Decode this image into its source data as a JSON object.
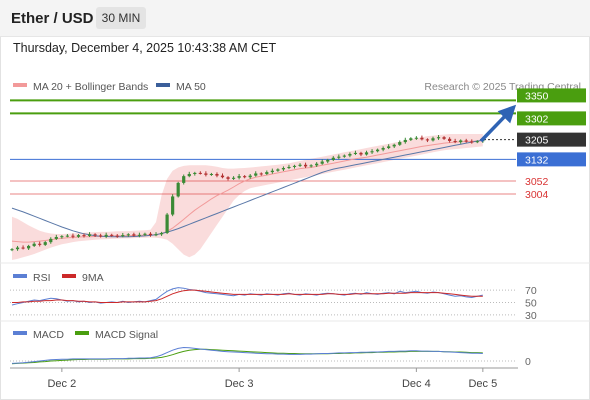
{
  "header": {
    "title": "Ether / USD",
    "interval": "30 MIN",
    "timestamp": "Thursday, December 4, 2025 10:43:38 AM CET"
  },
  "copyright": "Research © 2025 Trading Central",
  "colors": {
    "green": "#4a9e0f",
    "blue": "#3b6fd4",
    "red": "#d93434",
    "current": "#333333",
    "candle_up": "#3a8a35",
    "candle_down": "#b33333",
    "ma20": "#f29a9a",
    "band_fill": "#f9d6d6",
    "ma50": "#5a78a8",
    "rsi": "#5b7fd4",
    "rsi_ma": "#cc2929",
    "macd": "#5b7fd4",
    "macd_signal": "#4a9e0f"
  },
  "chart_data": [
    {
      "type": "candlestick",
      "legend": [
        {
          "name": "MA 20 + Bollinger Bands",
          "color": "#f29a9a"
        },
        {
          "name": "MA 50",
          "color": "#3b5f9a"
        }
      ],
      "levels": [
        {
          "value": 3350,
          "label": "3350",
          "kind": "resistance",
          "color": "#4a9e0f"
        },
        {
          "value": 3302,
          "label": "3302",
          "kind": "resistance",
          "color": "#4a9e0f"
        },
        {
          "value": 3205,
          "label": "3205",
          "kind": "current",
          "color": "#333333"
        },
        {
          "value": 3132,
          "label": "3132",
          "kind": "pivot",
          "color": "#3b6fd4"
        },
        {
          "value": 3052,
          "label": "3052",
          "kind": "support",
          "color": "#d93434"
        },
        {
          "value": 3004,
          "label": "3004",
          "kind": "support",
          "color": "#d93434"
        }
      ],
      "x_ticks": [
        {
          "i": 9,
          "label": "Dec 2"
        },
        {
          "i": 41,
          "label": "Dec 3"
        },
        {
          "i": 73,
          "label": "Dec 4"
        },
        {
          "i": 85,
          "label": "Dec 5"
        }
      ],
      "ylim": [
        2760,
        3370
      ],
      "n_slots": 90,
      "close": [
        2800,
        2806,
        2803,
        2812,
        2820,
        2816,
        2826,
        2838,
        2845,
        2848,
        2850,
        2846,
        2852,
        2849,
        2855,
        2851,
        2847,
        2853,
        2850,
        2848,
        2852,
        2855,
        2850,
        2853,
        2857,
        2852,
        2855,
        2860,
        2928,
        2995,
        3045,
        3070,
        3078,
        3082,
        3080,
        3075,
        3078,
        3072,
        3066,
        3060,
        3064,
        3070,
        3066,
        3072,
        3080,
        3078,
        3085,
        3090,
        3095,
        3100,
        3104,
        3108,
        3112,
        3106,
        3110,
        3116,
        3124,
        3130,
        3138,
        3142,
        3146,
        3152,
        3156,
        3150,
        3158,
        3162,
        3168,
        3174,
        3180,
        3186,
        3196,
        3204,
        3210,
        3212,
        3206,
        3202,
        3210,
        3214,
        3208,
        3200,
        3196,
        3202,
        3198,
        3196,
        3199,
        3205
      ],
      "ma20": [
        2830,
        2828,
        2826,
        2826,
        2828,
        2830,
        2832,
        2835,
        2838,
        2840,
        2842,
        2843,
        2845,
        2846,
        2846,
        2847,
        2848,
        2848,
        2849,
        2849,
        2850,
        2850,
        2851,
        2851,
        2852,
        2852,
        2853,
        2858,
        2866,
        2878,
        2894,
        2910,
        2928,
        2944,
        2958,
        2972,
        2986,
        2998,
        3008,
        3018,
        3030,
        3042,
        3052,
        3060,
        3066,
        3070,
        3074,
        3078,
        3082,
        3086,
        3090,
        3094,
        3098,
        3100,
        3102,
        3106,
        3110,
        3114,
        3118,
        3122,
        3126,
        3130,
        3134,
        3137,
        3140,
        3144,
        3148,
        3152,
        3156,
        3160,
        3164,
        3168,
        3172,
        3176,
        3180,
        3183,
        3186,
        3189,
        3192,
        3194,
        3196,
        3197,
        3198,
        3199,
        3200,
        3201
      ],
      "upper_band": [
        2920,
        2912,
        2900,
        2888,
        2878,
        2868,
        2862,
        2858,
        2856,
        2856,
        2857,
        2858,
        2860,
        2861,
        2862,
        2863,
        2864,
        2864,
        2865,
        2866,
        2866,
        2867,
        2868,
        2869,
        2870,
        2872,
        2900,
        3000,
        3060,
        3090,
        3102,
        3108,
        3110,
        3110,
        3110,
        3110,
        3108,
        3105,
        3100,
        3098,
        3098,
        3099,
        3100,
        3102,
        3104,
        3106,
        3108,
        3110,
        3112,
        3115,
        3118,
        3122,
        3126,
        3130,
        3134,
        3138,
        3142,
        3146,
        3150,
        3154,
        3158,
        3162,
        3166,
        3170,
        3174,
        3178,
        3182,
        3186,
        3190,
        3194,
        3198,
        3202,
        3206,
        3210,
        3214,
        3218,
        3220,
        3222,
        3224,
        3226,
        3226,
        3226,
        3226,
        3226,
        3226,
        3226
      ],
      "lower_band": [
        2760,
        2764,
        2770,
        2776,
        2782,
        2790,
        2798,
        2806,
        2812,
        2818,
        2822,
        2826,
        2829,
        2831,
        2833,
        2835,
        2836,
        2837,
        2838,
        2839,
        2840,
        2840,
        2841,
        2842,
        2842,
        2843,
        2842,
        2840,
        2835,
        2820,
        2800,
        2780,
        2770,
        2780,
        2800,
        2830,
        2860,
        2890,
        2920,
        2950,
        2980,
        3000,
        3015,
        3025,
        3030,
        3034,
        3038,
        3042,
        3046,
        3050,
        3054,
        3058,
        3062,
        3066,
        3070,
        3074,
        3078,
        3082,
        3086,
        3090,
        3094,
        3098,
        3102,
        3106,
        3110,
        3114,
        3118,
        3122,
        3126,
        3130,
        3134,
        3138,
        3142,
        3146,
        3150,
        3154,
        3158,
        3162,
        3166,
        3168,
        3170,
        3172,
        3174,
        3176,
        3178,
        3180
      ],
      "ma50": [
        2952,
        2945,
        2938,
        2930,
        2922,
        2914,
        2906,
        2898,
        2890,
        2882,
        2875,
        2868,
        2862,
        2857,
        2853,
        2850,
        2848,
        2847,
        2846,
        2846,
        2846,
        2846,
        2847,
        2848,
        2849,
        2851,
        2854,
        2858,
        2863,
        2869,
        2876,
        2884,
        2892,
        2900,
        2908,
        2916,
        2924,
        2932,
        2940,
        2948,
        2956,
        2964,
        2972,
        2980,
        2988,
        2996,
        3004,
        3012,
        3020,
        3028,
        3036,
        3044,
        3052,
        3060,
        3068,
        3076,
        3084,
        3090,
        3096,
        3100,
        3104,
        3108,
        3112,
        3116,
        3120,
        3124,
        3128,
        3132,
        3136,
        3140,
        3144,
        3148,
        3152,
        3156,
        3160,
        3164,
        3168,
        3172,
        3176,
        3180,
        3184,
        3188,
        3192,
        3196,
        3200,
        3203
      ]
    },
    {
      "type": "line",
      "legend": [
        {
          "name": "RSI",
          "color": "#5b7fd4"
        },
        {
          "name": "9MA",
          "color": "#cc2929"
        }
      ],
      "ylim": [
        25,
        75
      ],
      "y_ticks": [
        {
          "value": 70,
          "label": "70"
        },
        {
          "value": 50,
          "label": "50"
        },
        {
          "value": 30,
          "label": "30"
        }
      ],
      "rsi": [
        46,
        48,
        50,
        52,
        54,
        53,
        55,
        57,
        56,
        54,
        52,
        53,
        51,
        52,
        50,
        51,
        49,
        50,
        51,
        50,
        52,
        50,
        51,
        52,
        51,
        53,
        55,
        62,
        68,
        72,
        74,
        73,
        71,
        70,
        68,
        66,
        65,
        64,
        63,
        62,
        61,
        63,
        62,
        64,
        63,
        62,
        64,
        63,
        62,
        64,
        65,
        63,
        62,
        64,
        63,
        62,
        64,
        65,
        64,
        63,
        62,
        64,
        65,
        63,
        66,
        64,
        63,
        65,
        66,
        64,
        68,
        66,
        67,
        68,
        66,
        65,
        67,
        66,
        64,
        62,
        60,
        61,
        59,
        58,
        60,
        62
      ],
      "rsi_ma": [
        50,
        50,
        51,
        51,
        52,
        52,
        53,
        53,
        54,
        54,
        53,
        53,
        52,
        52,
        51,
        51,
        50,
        50,
        50,
        50,
        51,
        51,
        51,
        51,
        51,
        52,
        53,
        56,
        60,
        64,
        67,
        69,
        70,
        70,
        69,
        68,
        67,
        66,
        65,
        64,
        63,
        63,
        63,
        63,
        63,
        63,
        63,
        63,
        63,
        63,
        64,
        63,
        63,
        63,
        63,
        63,
        63,
        64,
        64,
        63,
        63,
        63,
        64,
        64,
        64,
        64,
        64,
        64,
        65,
        65,
        65,
        65,
        66,
        66,
        66,
        66,
        66,
        66,
        65,
        64,
        63,
        62,
        61,
        60,
        60,
        60
      ]
    },
    {
      "type": "line",
      "legend": [
        {
          "name": "MACD",
          "color": "#5b7fd4"
        },
        {
          "name": "MACD Signal",
          "color": "#4a9e0f"
        }
      ],
      "ylim": [
        -10,
        60
      ],
      "y_ticks": [
        {
          "value": 0,
          "label": "0"
        }
      ],
      "macd": [
        -8,
        -7,
        -6,
        -4,
        -2,
        0,
        2,
        4,
        5,
        6,
        6,
        7,
        7,
        7,
        7,
        7,
        7,
        7,
        8,
        8,
        8,
        9,
        9,
        10,
        10,
        11,
        14,
        20,
        28,
        36,
        42,
        45,
        44,
        42,
        40,
        38,
        36,
        34,
        32,
        31,
        30,
        29,
        28,
        27,
        26,
        25,
        24,
        24,
        23,
        23,
        22,
        22,
        22,
        23,
        23,
        24,
        25,
        25,
        26,
        27,
        27,
        28,
        28,
        29,
        29,
        30,
        30,
        31,
        32,
        32,
        33,
        33,
        34,
        34,
        33,
        33,
        32,
        32,
        31,
        30,
        29,
        28,
        27,
        26,
        26,
        25
      ],
      "signal": [
        -9,
        -8,
        -7,
        -6,
        -5,
        -3,
        -2,
        0,
        1,
        2,
        3,
        4,
        5,
        5,
        6,
        6,
        6,
        6,
        7,
        7,
        7,
        7,
        8,
        8,
        8,
        9,
        10,
        12,
        16,
        21,
        27,
        32,
        36,
        38,
        39,
        39,
        38,
        37,
        36,
        35,
        34,
        33,
        32,
        31,
        30,
        29,
        28,
        27,
        26,
        26,
        25,
        25,
        24,
        24,
        24,
        24,
        24,
        24,
        25,
        25,
        26,
        26,
        27,
        27,
        28,
        28,
        29,
        29,
        30,
        30,
        31,
        31,
        32,
        32,
        32,
        32,
        32,
        32,
        31,
        31,
        30,
        30,
        29,
        28,
        28,
        27
      ]
    }
  ]
}
